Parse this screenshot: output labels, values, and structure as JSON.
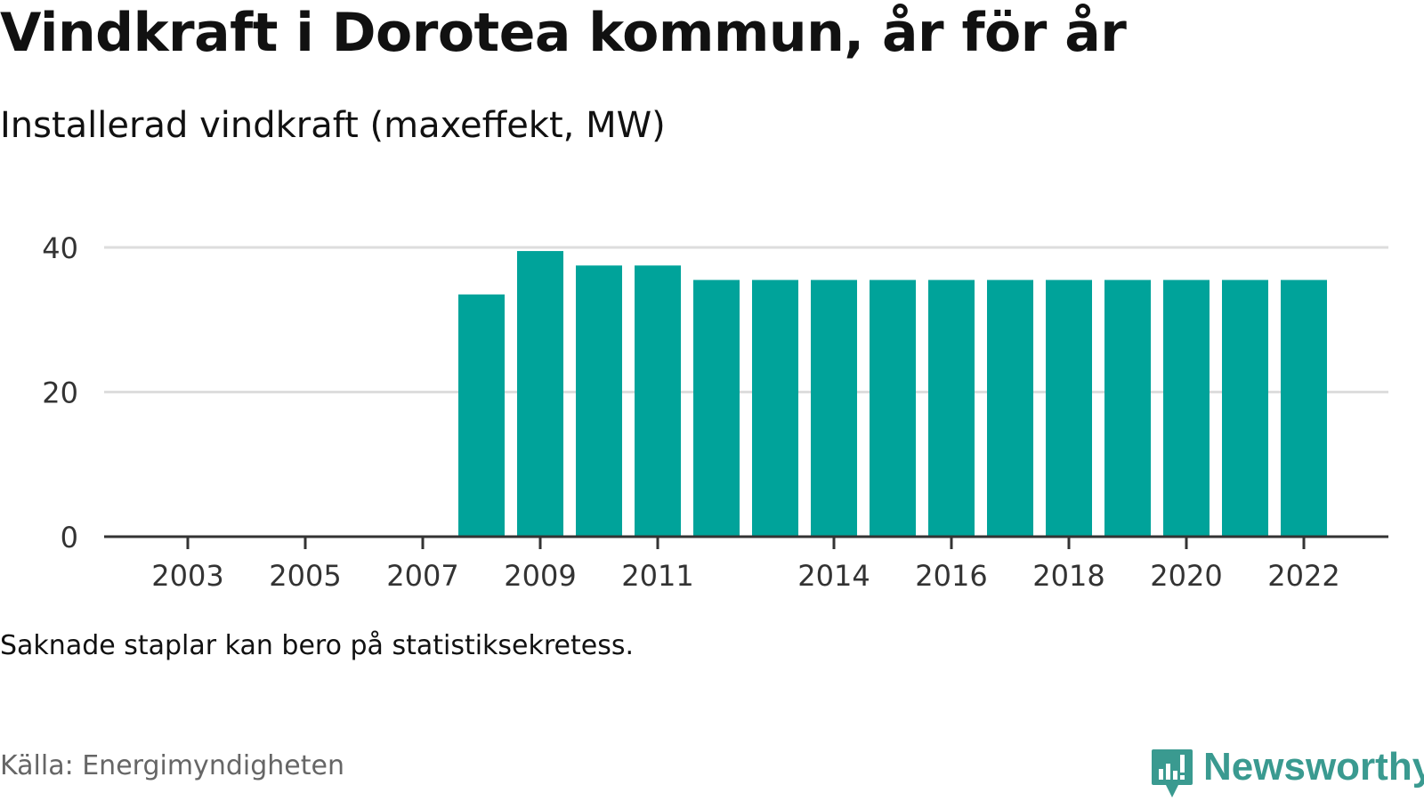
{
  "title": "Vindkraft i Dorotea kommun, år för år",
  "subtitle": "Installerad vindkraft (maxeffekt, MW)",
  "note": "Saknade staplar kan bero på statistiksekretess.",
  "source": "Källa: Energimyndigheten",
  "brand": {
    "name": "Newsworthy",
    "icon": "newsworthy-logo-icon",
    "color": "#3a9a90"
  },
  "chart_data": {
    "type": "bar",
    "categories": [
      "2002",
      "2003",
      "2004",
      "2005",
      "2006",
      "2007",
      "2008",
      "2009",
      "2010",
      "2011",
      "2012",
      "2013",
      "2014",
      "2015",
      "2016",
      "2017",
      "2018",
      "2019",
      "2020",
      "2021",
      "2022"
    ],
    "values": [
      null,
      null,
      null,
      null,
      null,
      null,
      33.5,
      39.5,
      37.5,
      37.5,
      35.5,
      35.5,
      35.5,
      35.5,
      35.5,
      35.5,
      35.5,
      35.5,
      35.5,
      35.5,
      35.5
    ],
    "x_tick_labels": [
      "2003",
      "2005",
      "2007",
      "2009",
      "2011",
      "2014",
      "2016",
      "2018",
      "2020",
      "2022"
    ],
    "y_ticks": [
      0,
      20,
      40
    ],
    "ylim": [
      0,
      40
    ],
    "xlabel": "",
    "ylabel": "",
    "grid": true,
    "bar_color": "#00a39a",
    "grid_color": "#dddddd",
    "axis_color": "#333333"
  }
}
